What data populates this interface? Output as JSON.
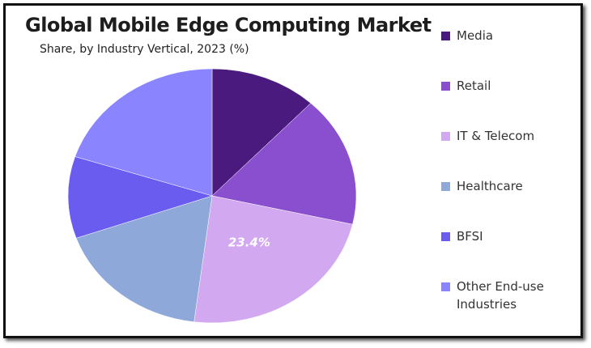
{
  "chart_data": {
    "type": "pie",
    "title": "Global Mobile Edge Computing Market",
    "subtitle": "Share, by Industry Vertical, 2023 (%)",
    "categories": [
      "Media",
      "Retail",
      "IT & Telecom",
      "Healthcare",
      "BFSI",
      "Other End-use Industries"
    ],
    "values": [
      12,
      16.6,
      23.4,
      17.6,
      10.4,
      20
    ],
    "value_labels": [
      null,
      null,
      "23.4%",
      null,
      null,
      null
    ],
    "colors": [
      "#4b1a7f",
      "#8a4fcf",
      "#d2a8f0",
      "#8fa8da",
      "#6b5cf0",
      "#8a85ff"
    ]
  }
}
